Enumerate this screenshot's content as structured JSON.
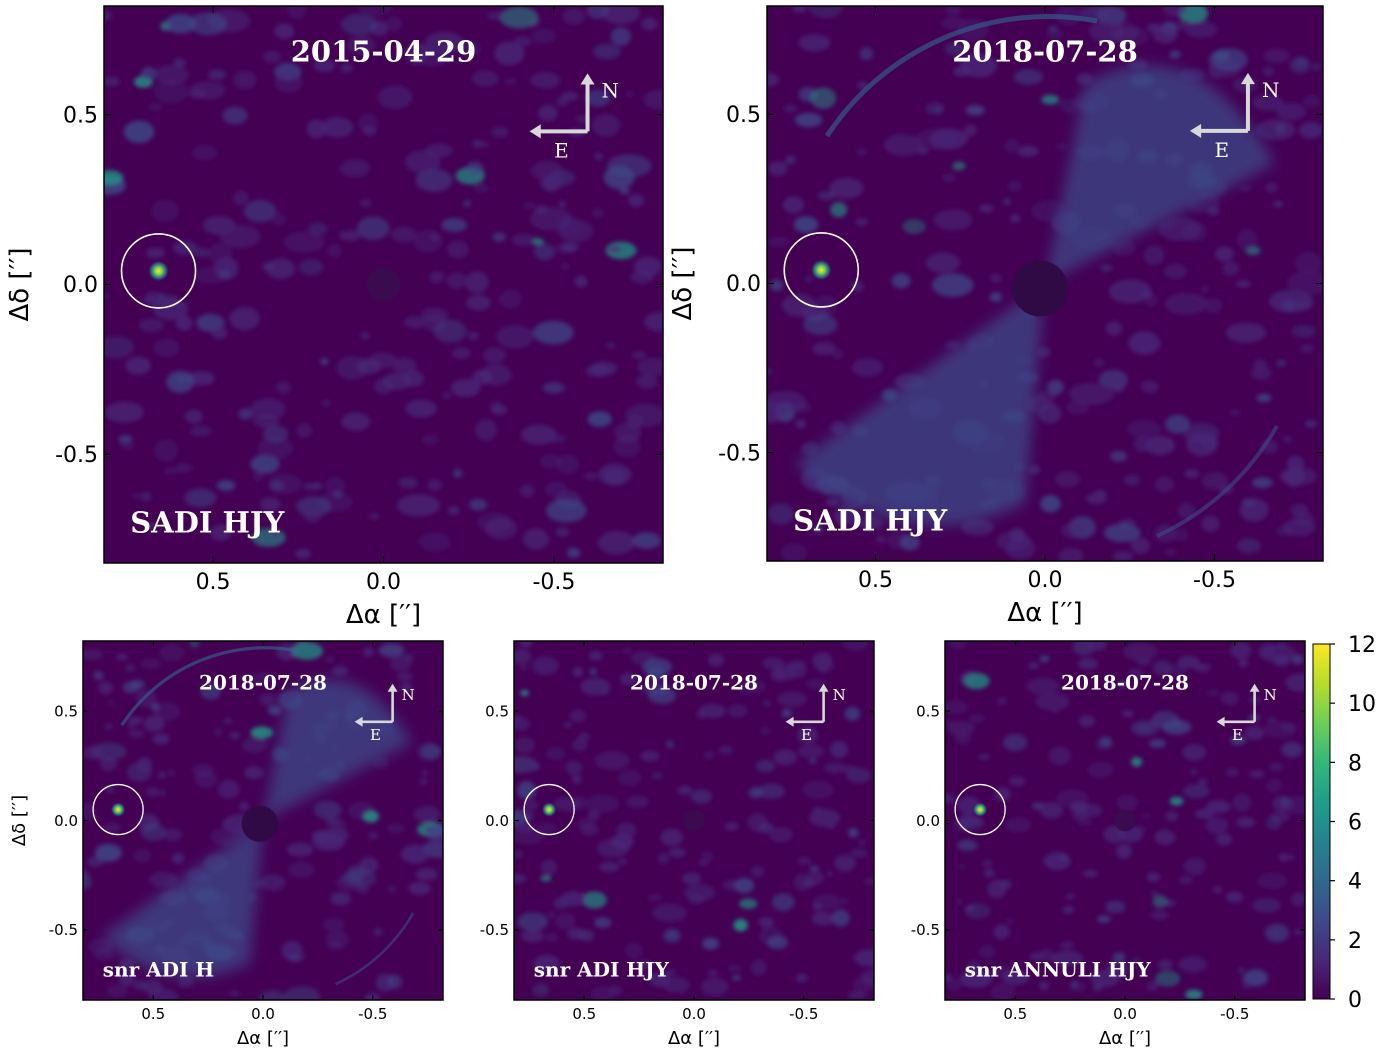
{
  "figure": {
    "panels": [
      {
        "id": "top-left",
        "date": "2015-04-29",
        "label": "SADI HJY",
        "kind": "sadi2015",
        "ylabel_visible": true
      },
      {
        "id": "top-right",
        "date": "2018-07-28",
        "label": "SADI  HJY",
        "kind": "sadi2018",
        "ylabel_visible": true
      },
      {
        "id": "bottom-1",
        "date": "2018-07-28",
        "label": "snr ADI H",
        "kind": "snrH",
        "ylabel_visible": true
      },
      {
        "id": "bottom-2",
        "date": "2018-07-28",
        "label": "snr ADI HJY",
        "kind": "snrHJY",
        "ylabel_visible": false
      },
      {
        "id": "bottom-3",
        "date": "2018-07-28",
        "label": "snr ANNULI HJY",
        "kind": "snrAnn",
        "ylabel_visible": false
      }
    ],
    "compass": {
      "north": "N",
      "east": "E"
    },
    "xlabel": "Δα [′′]",
    "ylabel": "Δδ [′′]",
    "colors": {
      "background": "#440154",
      "ring": "#ffffff",
      "arrow": "#d8d8d8",
      "colormap": [
        "#440154",
        "#482878",
        "#3e4a89",
        "#31688e",
        "#26828e",
        "#1f9e89",
        "#35b779",
        "#6ece58",
        "#b5de2b",
        "#fde725"
      ]
    }
  },
  "chart_data": [
    {
      "type": "heatmap",
      "title": "2015-04-29",
      "annotation": "SADI HJY",
      "xlabel": "Δα [′′]",
      "ylabel": "Δδ [′′]",
      "xlim": [
        0.82,
        -0.82
      ],
      "ylim": [
        -0.82,
        0.82
      ],
      "xticks": [
        0.5,
        0.0,
        -0.5
      ],
      "xtick_labels": [
        "0.5",
        "0.0",
        "-0.5"
      ],
      "yticks": [
        0.5,
        0.0,
        -0.5
      ],
      "ytick_labels": [
        "0.5",
        "0.0",
        "-0.5"
      ],
      "companion": {
        "x": 0.66,
        "y": 0.04
      }
    },
    {
      "type": "heatmap",
      "title": "2018-07-28",
      "annotation": "SADI  HJY",
      "xlabel": "Δα [′′]",
      "ylabel": "Δδ [′′]",
      "xlim": [
        0.82,
        -0.82
      ],
      "ylim": [
        -0.82,
        0.82
      ],
      "xticks": [
        0.5,
        0.0,
        -0.5
      ],
      "xtick_labels": [
        "0.5",
        "0.0",
        "-0.5"
      ],
      "yticks": [
        0.5,
        0.0,
        -0.5
      ],
      "ytick_labels": [
        "0.5",
        "0.0",
        "-0.5"
      ],
      "companion": {
        "x": 0.66,
        "y": 0.04
      }
    },
    {
      "type": "heatmap",
      "title": "2018-07-28",
      "annotation": "snr ADI H",
      "xlabel": "Δα [′′]",
      "ylabel": "Δδ [′′]",
      "xlim": [
        0.82,
        -0.82
      ],
      "ylim": [
        -0.82,
        0.82
      ],
      "xticks": [
        0.5,
        0.0,
        -0.5
      ],
      "xtick_labels": [
        "0.5",
        "0.0",
        "-0.5"
      ],
      "yticks": [
        0.5,
        0.0,
        -0.5
      ],
      "ytick_labels": [
        "0.5",
        "0.0",
        "-0.5"
      ],
      "companion": {
        "x": 0.66,
        "y": 0.05
      }
    },
    {
      "type": "heatmap",
      "title": "2018-07-28",
      "annotation": "snr ADI HJY",
      "xlabel": "Δα [′′]",
      "xlim": [
        0.82,
        -0.82
      ],
      "ylim": [
        -0.82,
        0.82
      ],
      "xticks": [
        0.5,
        0.0,
        -0.5
      ],
      "xtick_labels": [
        "0.5",
        "0.0",
        "-0.5"
      ],
      "yticks": [
        0.5,
        0.0,
        -0.5
      ],
      "ytick_labels": [
        "0.5",
        "0.0",
        "-0.5"
      ],
      "companion": {
        "x": 0.66,
        "y": 0.05
      }
    },
    {
      "type": "heatmap",
      "title": "2018-07-28",
      "annotation": "snr ANNULI HJY",
      "xlabel": "Δα [′′]",
      "xlim": [
        0.82,
        -0.82
      ],
      "ylim": [
        -0.82,
        0.82
      ],
      "xticks": [
        0.5,
        0.0,
        -0.5
      ],
      "xtick_labels": [
        "0.5",
        "0.0",
        "-0.5"
      ],
      "yticks": [
        0.5,
        0.0,
        -0.5
      ],
      "ytick_labels": [
        "0.5",
        "0.0",
        "-0.5"
      ],
      "companion": {
        "x": 0.66,
        "y": 0.05
      },
      "colorbar": {
        "range": [
          0,
          12
        ],
        "ticks": [
          0,
          2,
          4,
          6,
          8,
          10,
          12
        ],
        "tick_labels": [
          "0",
          "2",
          "4",
          "6",
          "8",
          "10",
          "12"
        ]
      }
    }
  ]
}
